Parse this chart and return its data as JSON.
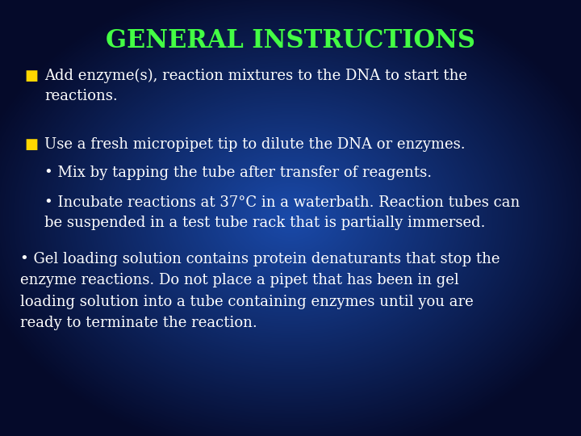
{
  "title": "GENERAL INSTRUCTIONS",
  "title_color": "#44FF44",
  "title_fontsize": 22,
  "bg_top_color": "#050a2a",
  "bg_mid_color": "#1a4aaa",
  "text_color": "#FFFFFF",
  "bullet_color": "#FFD700",
  "bullet1": "Add enzyme(s), reaction mixtures to the DNA to start the\nreactions.",
  "bullet2": "Use a fresh micropipet tip to dilute the DNA or enzymes.",
  "sub1": "• Mix by tapping the tube after transfer of reagents.",
  "sub2": "• Incubate reactions at 37°C in a waterbath. Reaction tubes can\nbe suspended in a test tube rack that is partially immersed.",
  "sub3": "• Gel loading solution contains protein denaturants that stop the\nenzyme reactions. Do not place a pipet that has been in gel\nloading solution into a tube containing enzymes until you are\nready to terminate the reaction.",
  "body_fontsize": 13,
  "sub_fontsize": 13
}
